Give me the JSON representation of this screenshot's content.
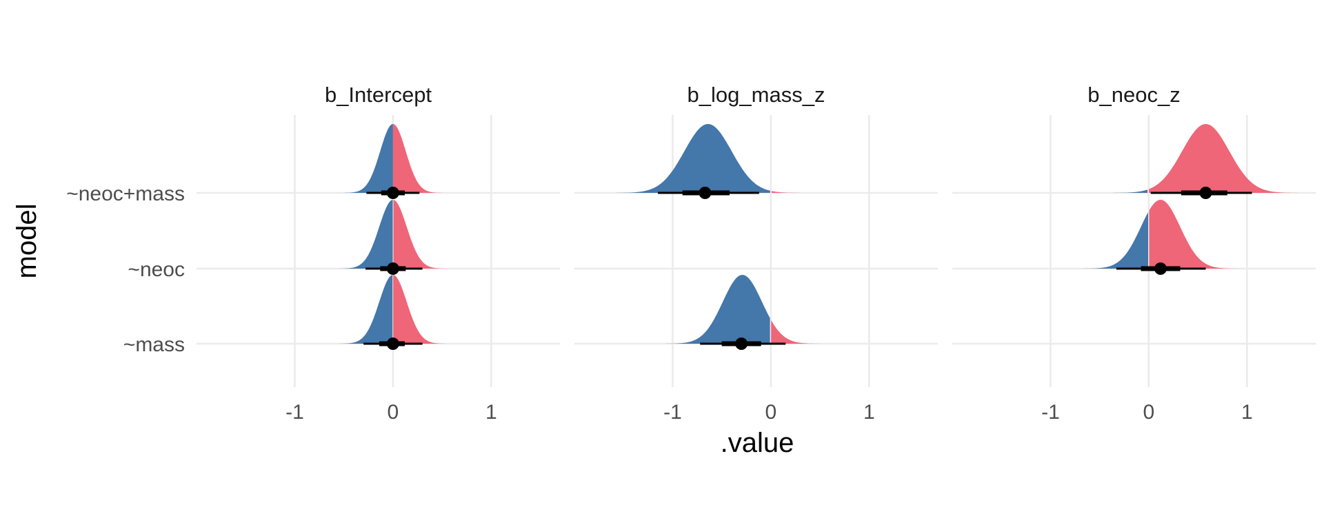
{
  "chart_data": {
    "type": "halfeye",
    "xlabel": ".value",
    "ylabel": "model",
    "xlim": [
      -2.0,
      1.7
    ],
    "x_ticks": [
      -1,
      0,
      1
    ],
    "x_tick_labels": [
      "-1",
      "0",
      "1"
    ],
    "grid": true,
    "colors": {
      "below_zero": "#4477AA",
      "above_zero": "#EE6677",
      "interval": "#000000",
      "grid": "#ebebeb"
    },
    "models": [
      "~neoc+mass",
      "~neoc",
      "~mass"
    ],
    "facets": [
      {
        "title": "b_Intercept",
        "rows": [
          {
            "model": "~neoc+mass",
            "median": 0.0,
            "mean": 0.0,
            "sd": 0.13,
            "ci66": [
              -0.12,
              0.12
            ],
            "ci95": [
              -0.27,
              0.27
            ],
            "range": [
              -0.55,
              0.55
            ]
          },
          {
            "model": "~neoc",
            "median": 0.0,
            "mean": 0.0,
            "sd": 0.14,
            "ci66": [
              -0.13,
              0.13
            ],
            "ci95": [
              -0.28,
              0.3
            ],
            "range": [
              -0.58,
              0.62
            ]
          },
          {
            "model": "~mass",
            "median": 0.0,
            "mean": 0.0,
            "sd": 0.14,
            "ci66": [
              -0.14,
              0.12
            ],
            "ci95": [
              -0.3,
              0.3
            ],
            "range": [
              -0.58,
              0.6
            ]
          }
        ]
      },
      {
        "title": "b_log_mass_z",
        "rows": [
          {
            "model": "~neoc+mass",
            "median": -0.67,
            "mean": -0.64,
            "sd": 0.24,
            "ci66": [
              -0.9,
              -0.42
            ],
            "ci95": [
              -1.15,
              -0.12
            ],
            "range": [
              -1.7,
              0.45
            ]
          },
          {
            "model": "~mass",
            "median": -0.3,
            "mean": -0.29,
            "sd": 0.2,
            "ci66": [
              -0.5,
              -0.1
            ],
            "ci95": [
              -0.72,
              0.15
            ],
            "range": [
              -1.1,
              0.7
            ]
          }
        ]
      },
      {
        "title": "b_neoc_z",
        "rows": [
          {
            "model": "~neoc+mass",
            "median": 0.58,
            "mean": 0.58,
            "sd": 0.24,
            "ci66": [
              0.33,
              0.8
            ],
            "ci95": [
              0.02,
              1.05
            ],
            "range": [
              -0.55,
              1.6
            ]
          },
          {
            "model": "~neoc",
            "median": 0.12,
            "mean": 0.12,
            "sd": 0.2,
            "ci66": [
              -0.08,
              0.32
            ],
            "ci95": [
              -0.33,
              0.58
            ],
            "range": [
              -0.75,
              0.95
            ]
          }
        ]
      }
    ]
  }
}
